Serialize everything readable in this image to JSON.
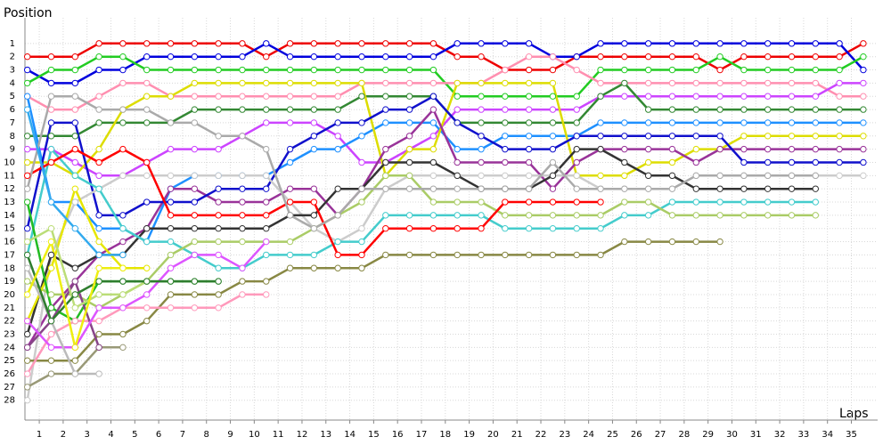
{
  "chart_data": {
    "type": "line",
    "y_label": "Position",
    "x_label": "Laps",
    "x": [
      0,
      1,
      2,
      3,
      4,
      5,
      6,
      7,
      8,
      9,
      10,
      11,
      12,
      13,
      14,
      15,
      16,
      17,
      18,
      19,
      20,
      21,
      22,
      23,
      24,
      25,
      26,
      27,
      28,
      29,
      30,
      31,
      32,
      33,
      34,
      35
    ],
    "xlim": [
      -0.1,
      35.6
    ],
    "xticks": [
      {
        "value": 0.5,
        "label": "1"
      },
      {
        "value": 1.5,
        "label": "2"
      },
      {
        "value": 2.5,
        "label": "3"
      },
      {
        "value": 3.5,
        "label": "4"
      },
      {
        "value": 4.5,
        "label": "5"
      },
      {
        "value": 5.5,
        "label": "6"
      },
      {
        "value": 6.5,
        "label": "7"
      },
      {
        "value": 7.5,
        "label": "8"
      },
      {
        "value": 8.5,
        "label": "9"
      },
      {
        "value": 9.5,
        "label": "10"
      },
      {
        "value": 10.5,
        "label": "11"
      },
      {
        "value": 11.5,
        "label": "12"
      },
      {
        "value": 12.5,
        "label": "13"
      },
      {
        "value": 13.5,
        "label": "14"
      },
      {
        "value": 14.5,
        "label": "15"
      },
      {
        "value": 15.5,
        "label": "16"
      },
      {
        "value": 16.5,
        "label": "17"
      },
      {
        "value": 17.5,
        "label": "18"
      },
      {
        "value": 18.5,
        "label": "19"
      },
      {
        "value": 19.5,
        "label": "20"
      },
      {
        "value": 20.5,
        "label": "21"
      },
      {
        "value": 21.5,
        "label": "22"
      },
      {
        "value": 22.5,
        "label": "23"
      },
      {
        "value": 23.5,
        "label": "24"
      },
      {
        "value": 24.5,
        "label": "25"
      },
      {
        "value": 25.5,
        "label": "26"
      },
      {
        "value": 26.5,
        "label": "27"
      },
      {
        "value": 27.5,
        "label": "28"
      },
      {
        "value": 28.5,
        "label": "29"
      },
      {
        "value": 29.5,
        "label": "30"
      },
      {
        "value": 30.5,
        "label": "31"
      },
      {
        "value": 31.5,
        "label": "32"
      },
      {
        "value": 32.5,
        "label": "33"
      },
      {
        "value": 33.5,
        "label": "34"
      },
      {
        "value": 34.5,
        "label": "35"
      }
    ],
    "ylim": [
      29.5,
      0
    ],
    "yticks": [
      1,
      2,
      3,
      4,
      5,
      6,
      7,
      8,
      9,
      10,
      11,
      12,
      13,
      14,
      15,
      16,
      17,
      18,
      19,
      20,
      21,
      22,
      23,
      24,
      25,
      26,
      27,
      28
    ],
    "grid": true,
    "series": [
      {
        "color": "#ee0000",
        "values": [
          2,
          2,
          2,
          1,
          1,
          1,
          1,
          1,
          1,
          1,
          2,
          1,
          1,
          1,
          1,
          1,
          1,
          1,
          2,
          2,
          3,
          3,
          3,
          2,
          2,
          2,
          2,
          2,
          2,
          3,
          2,
          2,
          2,
          2,
          2,
          1
        ]
      },
      {
        "color": "#0000dd",
        "values": [
          3,
          4,
          4,
          3,
          3,
          2,
          2,
          2,
          2,
          2,
          1,
          2,
          2,
          2,
          2,
          2,
          2,
          2,
          1,
          1,
          1,
          1,
          2,
          2,
          1,
          1,
          1,
          1,
          1,
          1,
          1,
          1,
          1,
          1,
          1,
          3
        ]
      },
      {
        "color": "#22cc22",
        "values": [
          4,
          3,
          3,
          2,
          2,
          3,
          3,
          3,
          3,
          3,
          3,
          3,
          3,
          3,
          3,
          3,
          3,
          3,
          5,
          5,
          5,
          5,
          5,
          5,
          3,
          3,
          3,
          3,
          3,
          2,
          3,
          3,
          3,
          3,
          3,
          2
        ]
      },
      {
        "color": "#ff8fb0",
        "values": [
          5,
          6,
          6,
          5,
          4,
          4,
          5,
          5,
          5,
          5,
          5,
          5,
          5,
          5,
          4,
          4,
          4,
          4,
          4,
          4,
          3,
          2,
          2,
          3,
          4,
          4,
          4,
          4,
          4,
          4,
          4,
          4,
          4,
          4,
          5,
          5
        ]
      },
      {
        "color": "#cc44ff",
        "values": [
          9,
          9,
          10,
          11,
          11,
          10,
          9,
          9,
          9,
          8,
          7,
          7,
          7,
          8,
          10,
          10,
          9,
          8,
          6,
          6,
          6,
          6,
          6,
          6,
          5,
          5,
          5,
          5,
          5,
          5,
          5,
          5,
          5,
          5,
          4,
          4
        ]
      },
      {
        "color": "#338833",
        "values": [
          8,
          8,
          8,
          7,
          7,
          7,
          7,
          6,
          6,
          6,
          6,
          6,
          6,
          6,
          5,
          5,
          5,
          5,
          7,
          7,
          7,
          7,
          7,
          7,
          5,
          4,
          6,
          6,
          6,
          6,
          6,
          6,
          6,
          6,
          6,
          6
        ]
      },
      {
        "color": "#1e90ff",
        "values": [
          5,
          13,
          13,
          15,
          15,
          16,
          12,
          11,
          11,
          11,
          11,
          10,
          9,
          9,
          8,
          7,
          7,
          7,
          9,
          9,
          8,
          8,
          8,
          8,
          7,
          7,
          7,
          7,
          7,
          7,
          7,
          7,
          7,
          7,
          7,
          7
        ]
      },
      {
        "color": "#dddd00",
        "values": [
          10,
          10,
          11,
          9,
          6,
          5,
          5,
          4,
          4,
          4,
          4,
          4,
          4,
          4,
          4,
          11,
          9,
          9,
          4,
          4,
          4,
          4,
          4,
          11,
          11,
          11,
          10,
          10,
          9,
          9,
          8,
          8,
          8,
          8,
          8,
          8
        ]
      },
      {
        "color": "#993399",
        "values": [
          24,
          21,
          19,
          17,
          16,
          15,
          12,
          12,
          13,
          13,
          13,
          12,
          12,
          14,
          12,
          9,
          8,
          6,
          10,
          10,
          10,
          10,
          12,
          10,
          9,
          9,
          9,
          9,
          10,
          9,
          9,
          9,
          9,
          9,
          9,
          9
        ]
      },
      {
        "color": "#1010cc",
        "values": [
          15,
          7,
          7,
          14,
          14,
          13,
          13,
          13,
          12,
          12,
          12,
          9,
          8,
          7,
          7,
          6,
          6,
          5,
          7,
          8,
          9,
          9,
          9,
          8,
          8,
          8,
          8,
          8,
          8,
          8,
          10,
          10,
          10,
          10,
          10,
          10
        ]
      },
      {
        "color": "#cccccc",
        "values": [
          28,
          17,
          13,
          12,
          11,
          11,
          11,
          11,
          11,
          11,
          11,
          13,
          15,
          16,
          15,
          12,
          11,
          11,
          11,
          11,
          11,
          11,
          11,
          11,
          12,
          12,
          12,
          12,
          11,
          11,
          11,
          11,
          11,
          11,
          11,
          11
        ]
      },
      {
        "color": "#333333",
        "values": [
          23,
          17,
          18,
          17,
          17,
          15,
          15,
          15,
          15,
          15,
          15,
          14,
          14,
          12,
          12,
          10,
          10,
          10,
          11,
          12,
          12,
          12,
          11,
          9,
          9,
          10,
          11,
          11,
          12,
          12,
          12,
          12,
          12,
          12,
          null,
          null
        ]
      },
      {
        "color": "#44cccc",
        "values": [
          17,
          9,
          11,
          12,
          15,
          16,
          16,
          17,
          18,
          18,
          17,
          17,
          17,
          16,
          16,
          14,
          14,
          14,
          14,
          14,
          15,
          15,
          15,
          15,
          15,
          14,
          14,
          13,
          13,
          13,
          13,
          13,
          13,
          13,
          null,
          null
        ]
      },
      {
        "color": "#aacc66",
        "values": [
          19,
          20,
          20,
          21,
          20,
          19,
          17,
          16,
          16,
          16,
          16,
          16,
          15,
          14,
          13,
          11,
          11,
          13,
          13,
          13,
          14,
          14,
          14,
          14,
          14,
          13,
          13,
          14,
          14,
          14,
          14,
          14,
          14,
          14,
          null,
          null
        ]
      },
      {
        "color": "#888844",
        "values": [
          25,
          25,
          25,
          23,
          23,
          22,
          20,
          20,
          20,
          19,
          19,
          18,
          18,
          18,
          18,
          17,
          17,
          17,
          17,
          17,
          17,
          17,
          17,
          17,
          17,
          16,
          16,
          16,
          16,
          16,
          null,
          null,
          null,
          null,
          null,
          null
        ]
      },
      {
        "color": "#ff0000",
        "values": [
          11,
          10,
          9,
          10,
          9,
          10,
          14,
          14,
          14,
          14,
          14,
          13,
          13,
          17,
          17,
          15,
          15,
          15,
          15,
          15,
          13,
          13,
          13,
          13,
          13,
          null,
          null,
          null,
          null,
          null,
          null,
          null,
          null,
          null,
          null,
          null
        ]
      },
      {
        "color": "#aaaaaa",
        "values": [
          12,
          5,
          5,
          6,
          6,
          6,
          7,
          7,
          8,
          8,
          9,
          14,
          15,
          14,
          12,
          12,
          12,
          12,
          12,
          12,
          12,
          12,
          10,
          12,
          12,
          12,
          12,
          12,
          11,
          11,
          11,
          11,
          11,
          11,
          null,
          null
        ]
      },
      {
        "color": "#e6e600",
        "values": [
          22,
          18,
          12,
          16,
          18,
          18,
          null,
          null,
          null,
          null,
          null,
          null,
          null,
          null,
          null,
          null,
          null,
          null,
          null,
          null,
          null,
          null,
          null,
          null,
          null,
          null,
          null,
          null,
          null,
          null,
          null,
          null,
          null,
          null,
          null,
          null
        ]
      },
      {
        "color": "#22bb22",
        "values": [
          13,
          21,
          22,
          19,
          19,
          19,
          19,
          19,
          19,
          null,
          null,
          null,
          null,
          null,
          null,
          null,
          null,
          null,
          null,
          null,
          null,
          null,
          null,
          null,
          null,
          null,
          null,
          null,
          null,
          null,
          null,
          null,
          null,
          null,
          null,
          null
        ]
      },
      {
        "color": "#ff99bb",
        "values": [
          26,
          23,
          22,
          22,
          21,
          21,
          21,
          21,
          21,
          20,
          20,
          null,
          null,
          null,
          null,
          null,
          null,
          null,
          null,
          null,
          null,
          null,
          null,
          null,
          null,
          null,
          null,
          null,
          null,
          null,
          null,
          null,
          null,
          null,
          null,
          null
        ]
      },
      {
        "color": "#999977",
        "values": [
          27,
          26,
          26,
          24,
          24,
          null,
          null,
          null,
          null,
          null,
          null,
          null,
          null,
          null,
          null,
          null,
          null,
          null,
          null,
          null,
          null,
          null,
          null,
          null,
          null,
          null,
          null,
          null,
          null,
          null,
          null,
          null,
          null,
          null,
          null,
          null
        ]
      },
      {
        "color": "#884488",
        "values": [
          24,
          22,
          19,
          24,
          null,
          null,
          null,
          null,
          null,
          null,
          null,
          null,
          null,
          null,
          null,
          null,
          null,
          null,
          null,
          null,
          null,
          null,
          null,
          null,
          null,
          null,
          null,
          null,
          null,
          null,
          null,
          null,
          null,
          null,
          null,
          null
        ]
      },
      {
        "color": "#dd55ff",
        "values": [
          22,
          24,
          24,
          21,
          21,
          20,
          18,
          17,
          17,
          18,
          16,
          null,
          null,
          null,
          null,
          null,
          null,
          null,
          null,
          null,
          null,
          null,
          null,
          null,
          null,
          null,
          null,
          null,
          null,
          null,
          null,
          null,
          null,
          null,
          null,
          null
        ]
      },
      {
        "color": "#bbbbbb",
        "values": [
          18,
          22,
          26,
          26,
          null,
          null,
          null,
          null,
          null,
          null,
          null,
          null,
          null,
          null,
          null,
          null,
          null,
          null,
          null,
          null,
          null,
          null,
          null,
          null,
          null,
          null,
          null,
          null,
          null,
          null,
          null,
          null,
          null,
          null,
          null,
          null
        ]
      },
      {
        "color": "#bbdd77",
        "values": [
          16,
          15,
          21,
          20,
          20,
          19,
          null,
          null,
          null,
          null,
          null,
          null,
          null,
          null,
          null,
          null,
          null,
          null,
          null,
          null,
          null,
          null,
          null,
          null,
          null,
          null,
          null,
          null,
          null,
          null,
          null,
          null,
          null,
          null,
          null,
          null
        ]
      },
      {
        "color": "#2e7d2e",
        "values": [
          17,
          22,
          20,
          19,
          19,
          19,
          19,
          19,
          19,
          null,
          null,
          null,
          null,
          null,
          null,
          null,
          null,
          null,
          null,
          null,
          null,
          null,
          null,
          null,
          null,
          null,
          null,
          null,
          null,
          null,
          null,
          null,
          null,
          null,
          null,
          null
        ]
      },
      {
        "color": "#33aaee",
        "values": [
          6,
          13,
          15,
          17,
          17,
          null,
          null,
          null,
          null,
          null,
          null,
          null,
          null,
          null,
          null,
          null,
          null,
          null,
          null,
          null,
          null,
          null,
          null,
          null,
          null,
          null,
          null,
          null,
          null,
          null,
          null,
          null,
          null,
          null,
          null,
          null
        ]
      },
      {
        "color": "#eeee11",
        "values": [
          20,
          16,
          24,
          18,
          18,
          null,
          null,
          null,
          null,
          null,
          null,
          null,
          null,
          null,
          null,
          null,
          null,
          null,
          null,
          null,
          null,
          null,
          null,
          null,
          null,
          null,
          null,
          null,
          null,
          null,
          null,
          null,
          null,
          null,
          null,
          null
        ]
      }
    ]
  }
}
